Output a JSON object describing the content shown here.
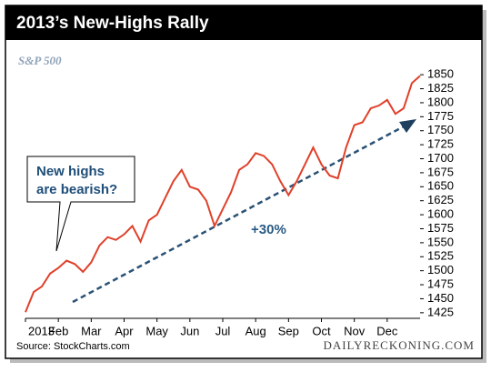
{
  "chart_data": {
    "type": "line",
    "title": "2013’s New-Highs Rally",
    "subtitle": "S&P 500",
    "source": "Source: StockCharts.com",
    "credit": "DAILYRECKONING.COM",
    "callout": [
      "New highs",
      "are bearish?"
    ],
    "trend_label": "+30%",
    "xlim": [
      0,
      12
    ],
    "xticks": [
      {
        "value": 0,
        "label": "2013"
      },
      {
        "value": 1,
        "label": "Feb"
      },
      {
        "value": 2,
        "label": "Mar"
      },
      {
        "value": 3,
        "label": "Apr"
      },
      {
        "value": 4,
        "label": "May"
      },
      {
        "value": 5,
        "label": "Jun"
      },
      {
        "value": 6,
        "label": "Jul"
      },
      {
        "value": 7,
        "label": "Aug"
      },
      {
        "value": 8,
        "label": "Sep"
      },
      {
        "value": 9,
        "label": "Oct"
      },
      {
        "value": 10,
        "label": "Nov"
      },
      {
        "value": 11,
        "label": "Dec"
      }
    ],
    "ylim": [
      1415,
      1860
    ],
    "yticks": [
      1425,
      1450,
      1475,
      1500,
      1525,
      1550,
      1575,
      1600,
      1625,
      1650,
      1675,
      1700,
      1725,
      1750,
      1775,
      1800,
      1825,
      1850
    ],
    "x": [
      0,
      0.25,
      0.5,
      0.75,
      1,
      1.25,
      1.5,
      1.75,
      2,
      2.25,
      2.5,
      2.75,
      3,
      3.25,
      3.5,
      3.75,
      4,
      4.25,
      4.5,
      4.75,
      5,
      5.25,
      5.5,
      5.75,
      6,
      6.25,
      6.5,
      6.75,
      7,
      7.25,
      7.5,
      7.75,
      8,
      8.25,
      8.5,
      8.75,
      9,
      9.25,
      9.5,
      9.75,
      10,
      10.25,
      10.5,
      10.75,
      11,
      11.25,
      11.5,
      11.75,
      12
    ],
    "series": [
      {
        "name": "S&P 500",
        "color": "#e0402a",
        "values": [
          1426,
          1462,
          1472,
          1495,
          1505,
          1518,
          1512,
          1498,
          1515,
          1545,
          1560,
          1555,
          1565,
          1580,
          1552,
          1590,
          1600,
          1630,
          1660,
          1680,
          1650,
          1645,
          1625,
          1580,
          1610,
          1640,
          1680,
          1690,
          1710,
          1705,
          1690,
          1660,
          1635,
          1660,
          1690,
          1720,
          1690,
          1670,
          1665,
          1720,
          1760,
          1765,
          1790,
          1795,
          1805,
          1780,
          1790,
          1835,
          1848
        ]
      }
    ]
  }
}
